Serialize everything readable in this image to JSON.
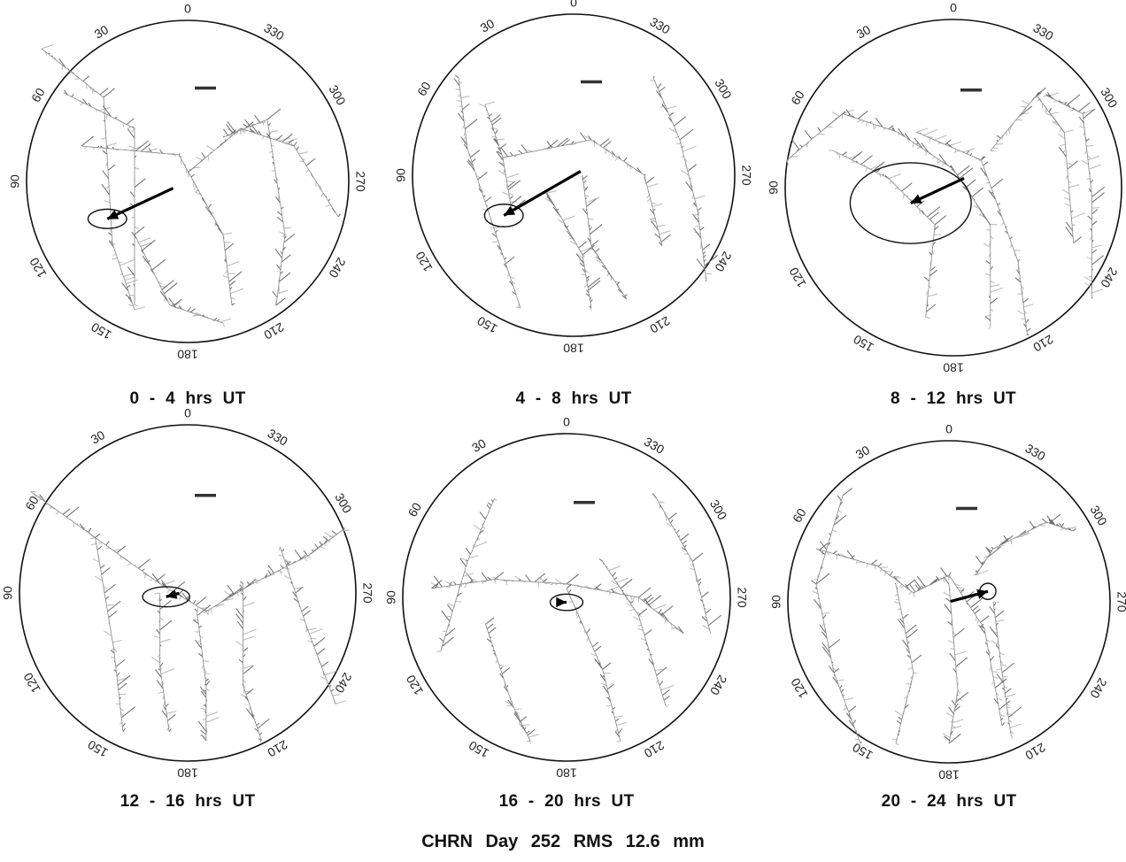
{
  "figure_title": "CHRN  Day  252  RMS  12.6  mm",
  "chart_data": [
    {
      "type": "polar-skyplot",
      "title": "0  -  4  hrs  UT",
      "azimuth_labels": [
        "0",
        "30",
        "60",
        "90",
        "120",
        "150",
        "180",
        "210",
        "240",
        "270",
        "300",
        "330"
      ],
      "mean_vector": {
        "azimuth_deg": 115,
        "length": 0.45
      },
      "error_ellipse": {
        "center_az_deg": 115,
        "center_r": 0.55,
        "major": 0.12,
        "minor": 0.06
      }
    },
    {
      "type": "polar-skyplot",
      "title": "4  -  8  hrs  UT",
      "azimuth_labels": [
        "0",
        "30",
        "60",
        "90",
        "120",
        "150",
        "180",
        "210",
        "240",
        "270",
        "300",
        "330"
      ],
      "mean_vector": {
        "azimuth_deg": 120,
        "length": 0.55
      },
      "error_ellipse": {
        "center_az_deg": 120,
        "center_r": 0.5,
        "major": 0.12,
        "minor": 0.07
      }
    },
    {
      "type": "polar-skyplot",
      "title": "8  -  12  hrs  UT",
      "azimuth_labels": [
        "0",
        "30",
        "60",
        "90",
        "120",
        "150",
        "180",
        "210",
        "240",
        "270",
        "300",
        "330"
      ],
      "mean_vector": {
        "azimuth_deg": 115,
        "length": 0.35
      },
      "error_ellipse": {
        "center_az_deg": 110,
        "center_r": 0.27,
        "major": 0.36,
        "minor": 0.24
      }
    },
    {
      "type": "polar-skyplot",
      "title": "12  -  16  hrs  UT",
      "azimuth_labels": [
        "0",
        "30",
        "60",
        "90",
        "120",
        "150",
        "180",
        "210",
        "240",
        "270",
        "300",
        "330"
      ],
      "mean_vector": {
        "azimuth_deg": 105,
        "length": 0.08
      },
      "error_ellipse": {
        "center_az_deg": 100,
        "center_r": 0.13,
        "major": 0.14,
        "minor": 0.06
      }
    },
    {
      "type": "polar-skyplot",
      "title": "16  -  20  hrs  UT",
      "azimuth_labels": [
        "0",
        "30",
        "60",
        "90",
        "120",
        "150",
        "180",
        "210",
        "240",
        "270",
        "300",
        "330"
      ],
      "mean_vector": {
        "azimuth_deg": 270,
        "length": 0.06
      },
      "error_ellipse": {
        "center_az_deg": 180,
        "center_r": 0.03,
        "major": 0.1,
        "minor": 0.05
      }
    },
    {
      "type": "polar-skyplot",
      "title": "20  -  24  hrs  UT",
      "azimuth_labels": [
        "0",
        "30",
        "60",
        "90",
        "120",
        "150",
        "180",
        "210",
        "240",
        "270",
        "300",
        "330"
      ],
      "mean_vector": {
        "azimuth_deg": 285,
        "length": 0.24
      },
      "error_ellipse": {
        "center_az_deg": 285,
        "center_r": 0.25,
        "major": 0.05,
        "minor": 0.05
      }
    }
  ]
}
